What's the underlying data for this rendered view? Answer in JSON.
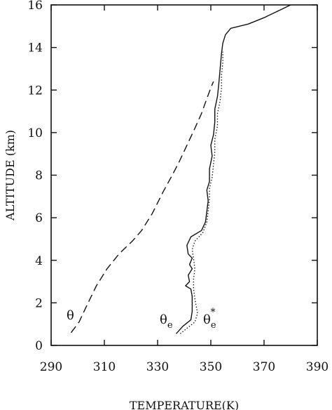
{
  "chart_data": {
    "type": "line",
    "xlabel": "TEMPERATURE(K)",
    "ylabel": "ALTITUDE (km)",
    "xlim": [
      290,
      390
    ],
    "ylim": [
      0,
      16
    ],
    "x_ticks": [
      290,
      310,
      330,
      350,
      370,
      390
    ],
    "y_ticks": [
      0,
      2,
      4,
      6,
      8,
      10,
      12,
      14,
      16
    ],
    "x_tick_labels": [
      "290",
      "310",
      "330",
      "350",
      "370",
      "390"
    ],
    "y_tick_labels": [
      "0",
      "2",
      "4",
      "6",
      "8",
      "10",
      "12",
      "14",
      "16"
    ],
    "grid": false,
    "series": [
      {
        "key": "theta",
        "name": "θ",
        "line_style": "dashed",
        "label": {
          "base": "θ",
          "sub": "",
          "sup": ""
        },
        "points": [
          [
            297.5,
            0.6
          ],
          [
            300.5,
            1.1
          ],
          [
            303.5,
            1.9
          ],
          [
            307.0,
            2.8
          ],
          [
            311.0,
            3.6
          ],
          [
            315.5,
            4.3
          ],
          [
            320.5,
            4.9
          ],
          [
            324.0,
            5.4
          ],
          [
            328.0,
            6.2
          ],
          [
            332.0,
            7.2
          ],
          [
            335.5,
            8.0
          ],
          [
            338.0,
            8.6
          ],
          [
            341.0,
            9.4
          ],
          [
            344.0,
            10.2
          ],
          [
            346.5,
            10.9
          ],
          [
            348.5,
            11.6
          ],
          [
            350.0,
            12.1
          ],
          [
            351.0,
            12.4
          ]
        ]
      },
      {
        "key": "theta_e",
        "name": "θe",
        "line_style": "solid",
        "label": {
          "base": "θ",
          "sub": "e",
          "sup": ""
        },
        "points": [
          [
            337.0,
            0.55
          ],
          [
            339.5,
            0.9
          ],
          [
            342.5,
            1.2
          ],
          [
            343.0,
            1.6
          ],
          [
            343.0,
            2.3
          ],
          [
            342.5,
            2.65
          ],
          [
            340.5,
            2.8
          ],
          [
            342.0,
            3.0
          ],
          [
            341.5,
            3.3
          ],
          [
            343.0,
            3.6
          ],
          [
            342.0,
            3.8
          ],
          [
            343.0,
            4.1
          ],
          [
            341.5,
            4.3
          ],
          [
            341.0,
            4.7
          ],
          [
            342.5,
            5.1
          ],
          [
            346.5,
            5.4
          ],
          [
            348.0,
            5.8
          ],
          [
            348.5,
            6.3
          ],
          [
            349.0,
            6.8
          ],
          [
            348.5,
            7.3
          ],
          [
            349.5,
            7.7
          ],
          [
            349.5,
            8.3
          ],
          [
            350.5,
            8.9
          ],
          [
            350.0,
            9.4
          ],
          [
            351.0,
            9.9
          ],
          [
            351.5,
            10.5
          ],
          [
            351.5,
            11.1
          ],
          [
            352.5,
            11.7
          ],
          [
            353.0,
            12.3
          ],
          [
            353.5,
            13.0
          ],
          [
            354.0,
            13.7
          ],
          [
            354.5,
            14.2
          ],
          [
            355.5,
            14.6
          ],
          [
            357.5,
            14.9
          ],
          [
            364.0,
            15.1
          ],
          [
            370.0,
            15.4
          ],
          [
            375.0,
            15.7
          ],
          [
            380.0,
            16.0
          ]
        ]
      },
      {
        "key": "theta_e_star",
        "name": "θe*",
        "line_style": "dotted",
        "label": {
          "base": "θ",
          "sub": "e",
          "sup": "*"
        },
        "points": [
          [
            338.5,
            0.55
          ],
          [
            341.0,
            0.8
          ],
          [
            344.0,
            1.1
          ],
          [
            345.0,
            1.5
          ],
          [
            344.0,
            2.2
          ],
          [
            343.5,
            2.7
          ],
          [
            343.5,
            3.1
          ],
          [
            344.0,
            3.6
          ],
          [
            343.5,
            4.1
          ],
          [
            343.0,
            4.5
          ],
          [
            344.0,
            4.9
          ],
          [
            347.0,
            5.3
          ],
          [
            348.5,
            5.8
          ],
          [
            349.0,
            6.3
          ],
          [
            349.5,
            6.9
          ],
          [
            349.5,
            7.4
          ],
          [
            350.5,
            7.9
          ],
          [
            351.0,
            8.5
          ],
          [
            351.5,
            9.1
          ],
          [
            351.5,
            9.7
          ],
          [
            352.5,
            10.3
          ],
          [
            352.5,
            10.9
          ],
          [
            353.5,
            11.5
          ],
          [
            354.0,
            12.1
          ],
          [
            354.0,
            12.7
          ],
          [
            354.5,
            13.3
          ],
          [
            354.5,
            13.8
          ]
        ]
      }
    ]
  }
}
